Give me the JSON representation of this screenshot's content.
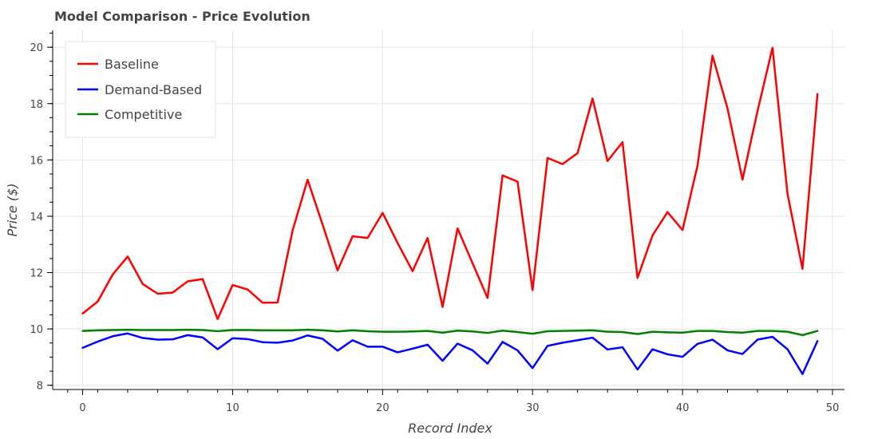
{
  "chart_data": {
    "type": "line",
    "title": "Model Comparison - Price Evolution",
    "xlabel": "Record Index",
    "ylabel": "Price ($)",
    "xlim": [
      -2,
      50.8
    ],
    "ylim": [
      7.85,
      20.6
    ],
    "xticks": [
      0,
      10,
      20,
      30,
      40,
      50
    ],
    "yticks": [
      8,
      10,
      12,
      14,
      16,
      18,
      20
    ],
    "grid": true,
    "legend_position": "top-left",
    "x": [
      0,
      1,
      2,
      3,
      4,
      5,
      6,
      7,
      8,
      9,
      10,
      11,
      12,
      13,
      14,
      15,
      16,
      17,
      18,
      19,
      20,
      21,
      22,
      23,
      24,
      25,
      26,
      27,
      28,
      29,
      30,
      31,
      32,
      33,
      34,
      35,
      36,
      37,
      38,
      39,
      40,
      41,
      42,
      43,
      44,
      45,
      46,
      47,
      48,
      49
    ],
    "series": [
      {
        "name": "Baseline",
        "color": "#ff0000",
        "values": [
          10.55,
          10.97,
          11.93,
          12.57,
          11.6,
          11.25,
          11.29,
          11.69,
          11.77,
          10.35,
          11.56,
          11.4,
          10.93,
          10.94,
          13.5,
          15.3,
          13.7,
          12.08,
          13.29,
          13.23,
          14.12,
          13.05,
          12.05,
          13.23,
          10.78,
          13.57,
          12.33,
          11.1,
          15.45,
          15.23,
          11.38,
          16.07,
          15.85,
          16.24,
          18.18,
          15.96,
          16.63,
          11.81,
          13.32,
          14.15,
          13.51,
          15.8,
          19.7,
          17.83,
          15.3,
          17.73,
          19.98,
          14.8,
          12.13,
          18.34
        ]
      },
      {
        "name": "Demand-Based",
        "color": "#0000ff",
        "values": [
          9.33,
          9.55,
          9.74,
          9.84,
          9.68,
          9.62,
          9.63,
          9.78,
          9.7,
          9.28,
          9.67,
          9.64,
          9.53,
          9.51,
          9.59,
          9.77,
          9.65,
          9.23,
          9.6,
          9.37,
          9.37,
          9.17,
          9.3,
          9.44,
          8.87,
          9.48,
          9.24,
          8.77,
          9.54,
          9.24,
          8.61,
          9.4,
          9.51,
          9.6,
          9.69,
          9.27,
          9.35,
          8.56,
          9.28,
          9.1,
          9.01,
          9.47,
          9.62,
          9.24,
          9.11,
          9.62,
          9.72,
          9.28,
          8.4,
          9.57
        ]
      },
      {
        "name": "Competitive",
        "color": "#008000",
        "values": [
          9.93,
          9.95,
          9.96,
          9.97,
          9.96,
          9.96,
          9.96,
          9.97,
          9.96,
          9.92,
          9.96,
          9.96,
          9.95,
          9.95,
          9.95,
          9.97,
          9.95,
          9.91,
          9.95,
          9.92,
          9.9,
          9.9,
          9.91,
          9.93,
          9.87,
          9.94,
          9.91,
          9.86,
          9.94,
          9.89,
          9.83,
          9.92,
          9.93,
          9.94,
          9.95,
          9.9,
          9.89,
          9.82,
          9.9,
          9.88,
          9.87,
          9.93,
          9.93,
          9.89,
          9.87,
          9.93,
          9.93,
          9.9,
          9.78,
          9.93
        ]
      }
    ]
  }
}
